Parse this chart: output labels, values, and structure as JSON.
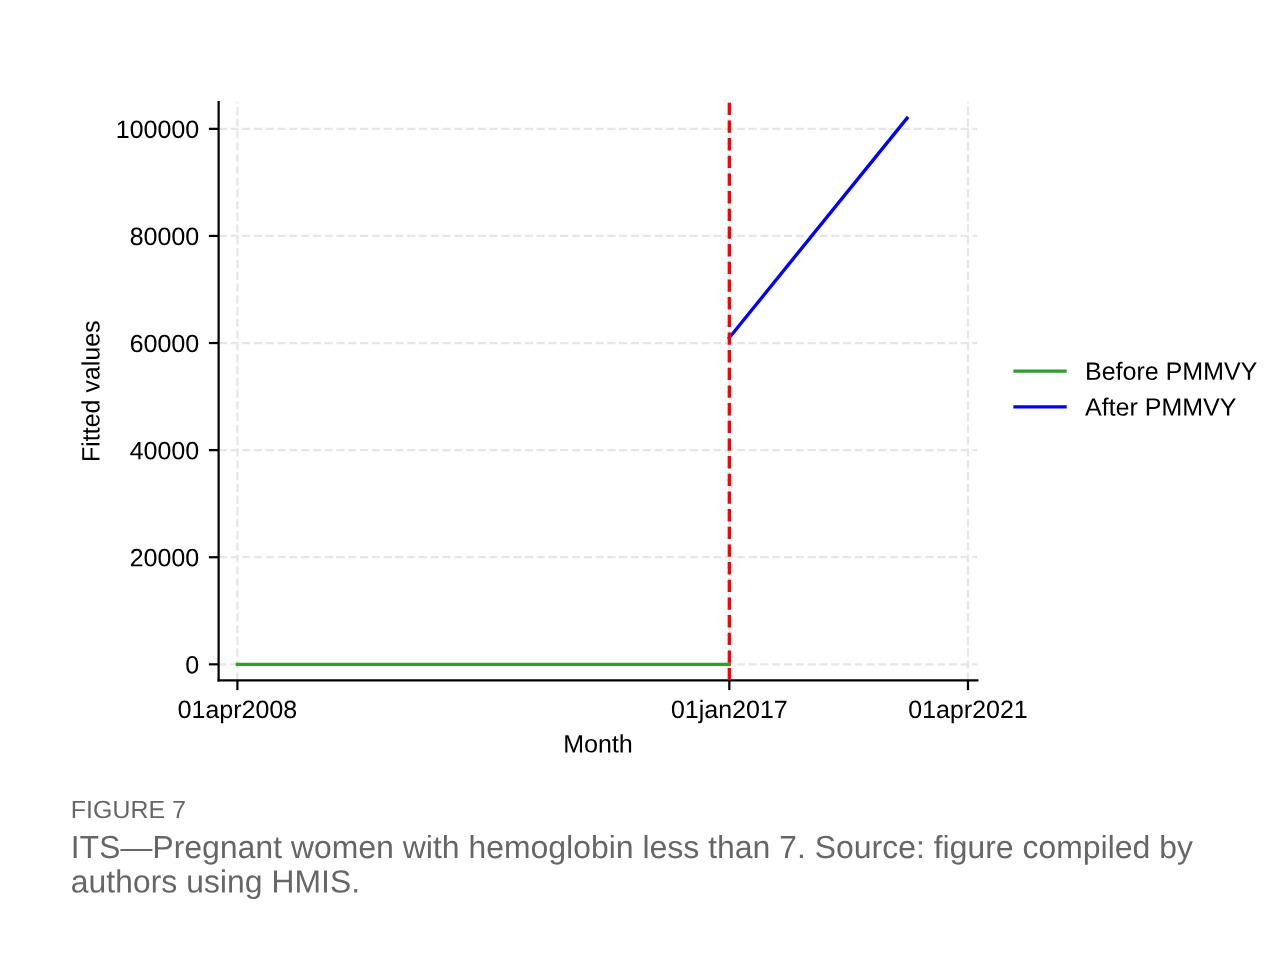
{
  "chart_data": {
    "type": "line",
    "xlabel": "Month",
    "ylabel": "Fitted values",
    "series": [
      {
        "name": "Before PMMVY",
        "color": "#2ca02c",
        "x": [
          "2008-04-01",
          "2017-01-01"
        ],
        "values": [
          0,
          0
        ]
      },
      {
        "name": "After PMMVY",
        "color": "#0000ff",
        "x": [
          "2017-01-01",
          "2020-03-01"
        ],
        "values": [
          61000,
          102000
        ]
      }
    ],
    "xlim": [
      "2007-12-01",
      "2021-06-01"
    ],
    "xticks": [
      {
        "value": "2008-04-01",
        "label": "01apr2008"
      },
      {
        "value": "2017-01-01",
        "label": "01jan2017"
      },
      {
        "value": "2021-04-01",
        "label": "01apr2021"
      }
    ],
    "ylim": [
      -3000,
      105000
    ],
    "yticks": [
      0,
      20000,
      40000,
      60000,
      80000,
      100000
    ],
    "ref_lines": [
      {
        "axis": "x",
        "value": "2017-01-01",
        "color": "#ff0000",
        "line_style": "dashed"
      }
    ],
    "grid": true,
    "legend": "right",
    "annotations": [
      "FIGURE 7",
      "ITS—Pregnant women with hemoglobin less than 7. Source: figure compiled by authors using HMIS."
    ]
  }
}
